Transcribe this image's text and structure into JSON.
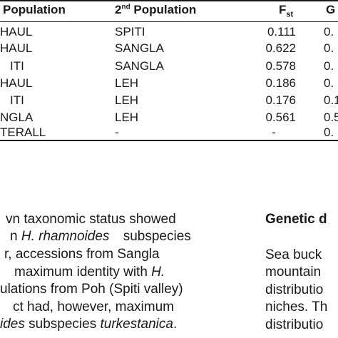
{
  "table": {
    "headers": {
      "pop1": "Population",
      "pop2_pre": "2",
      "pop2_sup": "nd",
      "pop2_post": " Population",
      "fst_main": "F",
      "fst_sub": "st",
      "col4": "G"
    },
    "rows": [
      {
        "pop1": "HAUL",
        "pop2": "SPITI",
        "fst": "0.111",
        "col4": "0."
      },
      {
        "pop1": "HAUL",
        "pop2": "SANGLA",
        "fst": "0.622",
        "col4": "0."
      },
      {
        "pop1": "ITI",
        "pop2": "SANGLA",
        "fst": "0.578",
        "col4": "0."
      },
      {
        "pop1": "HAUL",
        "pop2": "LEH",
        "fst": "0.186",
        "col4": "0."
      },
      {
        "pop1": "ITI",
        "pop2": "LEH",
        "fst": "0.176",
        "col4": "0.1"
      },
      {
        "pop1": "NGLA",
        "pop2": "LEH",
        "fst": "0.561",
        "col4": "0.5"
      },
      {
        "pop1": "TERALL",
        "pop2": "-",
        "fst": "-",
        "col4": "0."
      }
    ]
  },
  "left_text": {
    "line1": "vn taxonomic status showed",
    "line2_a": "n ",
    "line2_b": "H. rhamnoides",
    "line2_c": " subspecies",
    "line3": "r, accessions from Sangla",
    "line4_a": "maximum identity with ",
    "line4_b": "H.",
    "line5": "ulations from Poh (Spiti valley)",
    "line6": "ct had, however, maximum",
    "line7_a": "ides",
    "line7_b": " subspecies ",
    "line7_c": "turkestanica",
    "line7_d": "."
  },
  "right_text": {
    "heading": "Genetic d",
    "line1": "Sea buck",
    "line2": "mountain",
    "line3": "distributio",
    "line4": "niches. Th",
    "line5": "distributio"
  }
}
